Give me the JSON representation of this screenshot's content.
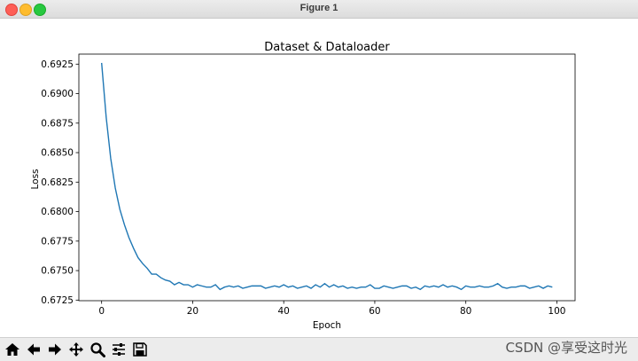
{
  "window": {
    "title": "Figure 1"
  },
  "toolbar": {
    "buttons": [
      {
        "icon": "home-icon"
      },
      {
        "icon": "back-arrow-icon"
      },
      {
        "icon": "forward-arrow-icon"
      },
      {
        "icon": "pan-move-icon"
      },
      {
        "icon": "zoom-magnifier-icon"
      },
      {
        "icon": "configure-subplots-icon"
      },
      {
        "icon": "save-disk-icon"
      }
    ]
  },
  "watermark": "CSDN @享受这时光",
  "colors": {
    "line": "#1f77b4",
    "axes": "#000000",
    "background": "#ffffff"
  },
  "chart_data": {
    "type": "line",
    "title": "Dataset & Dataloader",
    "xlabel": "Epoch",
    "ylabel": "Loss",
    "xlim": [
      -5,
      104
    ],
    "ylim": [
      0.67245,
      0.69335
    ],
    "xticks": [
      0,
      20,
      40,
      60,
      80,
      100
    ],
    "xtick_labels": [
      "0",
      "20",
      "40",
      "60",
      "80",
      "100"
    ],
    "yticks": [
      0.6725,
      0.675,
      0.6775,
      0.68,
      0.6825,
      0.685,
      0.6875,
      0.69,
      0.6925
    ],
    "ytick_labels": [
      "0.6725",
      "0.6750",
      "0.6775",
      "0.6800",
      "0.6825",
      "0.6850",
      "0.6875",
      "0.6900",
      "0.6925"
    ],
    "grid": false,
    "series": [
      {
        "color": "#1f77b4",
        "x": [
          0,
          1,
          2,
          3,
          4,
          5,
          6,
          7,
          8,
          9,
          10,
          11,
          12,
          13,
          14,
          15,
          16,
          17,
          18,
          19,
          20,
          21,
          22,
          23,
          24,
          25,
          26,
          27,
          28,
          29,
          30,
          31,
          32,
          33,
          34,
          35,
          36,
          37,
          38,
          39,
          40,
          41,
          42,
          43,
          44,
          45,
          46,
          47,
          48,
          49,
          50,
          51,
          52,
          53,
          54,
          55,
          56,
          57,
          58,
          59,
          60,
          61,
          62,
          63,
          64,
          65,
          66,
          67,
          68,
          69,
          70,
          71,
          72,
          73,
          74,
          75,
          76,
          77,
          78,
          79,
          80,
          81,
          82,
          83,
          84,
          85,
          86,
          87,
          88,
          89,
          90,
          91,
          92,
          93,
          94,
          95,
          96,
          97,
          98,
          99
        ],
        "values": [
          0.6926,
          0.688,
          0.6845,
          0.682,
          0.6802,
          0.6789,
          0.6778,
          0.6769,
          0.6761,
          0.6756,
          0.6752,
          0.6747,
          0.6747,
          0.6744,
          0.6742,
          0.6741,
          0.6738,
          0.674,
          0.6738,
          0.6738,
          0.6736,
          0.6738,
          0.6737,
          0.6736,
          0.6736,
          0.6738,
          0.6734,
          0.6736,
          0.6737,
          0.6736,
          0.6737,
          0.6735,
          0.6736,
          0.6737,
          0.6737,
          0.6737,
          0.6735,
          0.6736,
          0.6737,
          0.6736,
          0.6738,
          0.6736,
          0.6737,
          0.6735,
          0.6736,
          0.6737,
          0.6735,
          0.6738,
          0.6736,
          0.6739,
          0.6736,
          0.6738,
          0.6736,
          0.6737,
          0.6735,
          0.6736,
          0.6735,
          0.6736,
          0.6736,
          0.6738,
          0.6735,
          0.6735,
          0.6737,
          0.6736,
          0.6735,
          0.6736,
          0.6737,
          0.6737,
          0.6735,
          0.6736,
          0.6734,
          0.6737,
          0.6736,
          0.6737,
          0.6736,
          0.6738,
          0.6736,
          0.6737,
          0.6736,
          0.6734,
          0.6737,
          0.6736,
          0.6736,
          0.6737,
          0.6736,
          0.6736,
          0.6737,
          0.6739,
          0.6736,
          0.6735,
          0.6736,
          0.6736,
          0.6737,
          0.6737,
          0.6735,
          0.6736,
          0.6737,
          0.6735,
          0.6737,
          0.6736
        ]
      }
    ]
  }
}
